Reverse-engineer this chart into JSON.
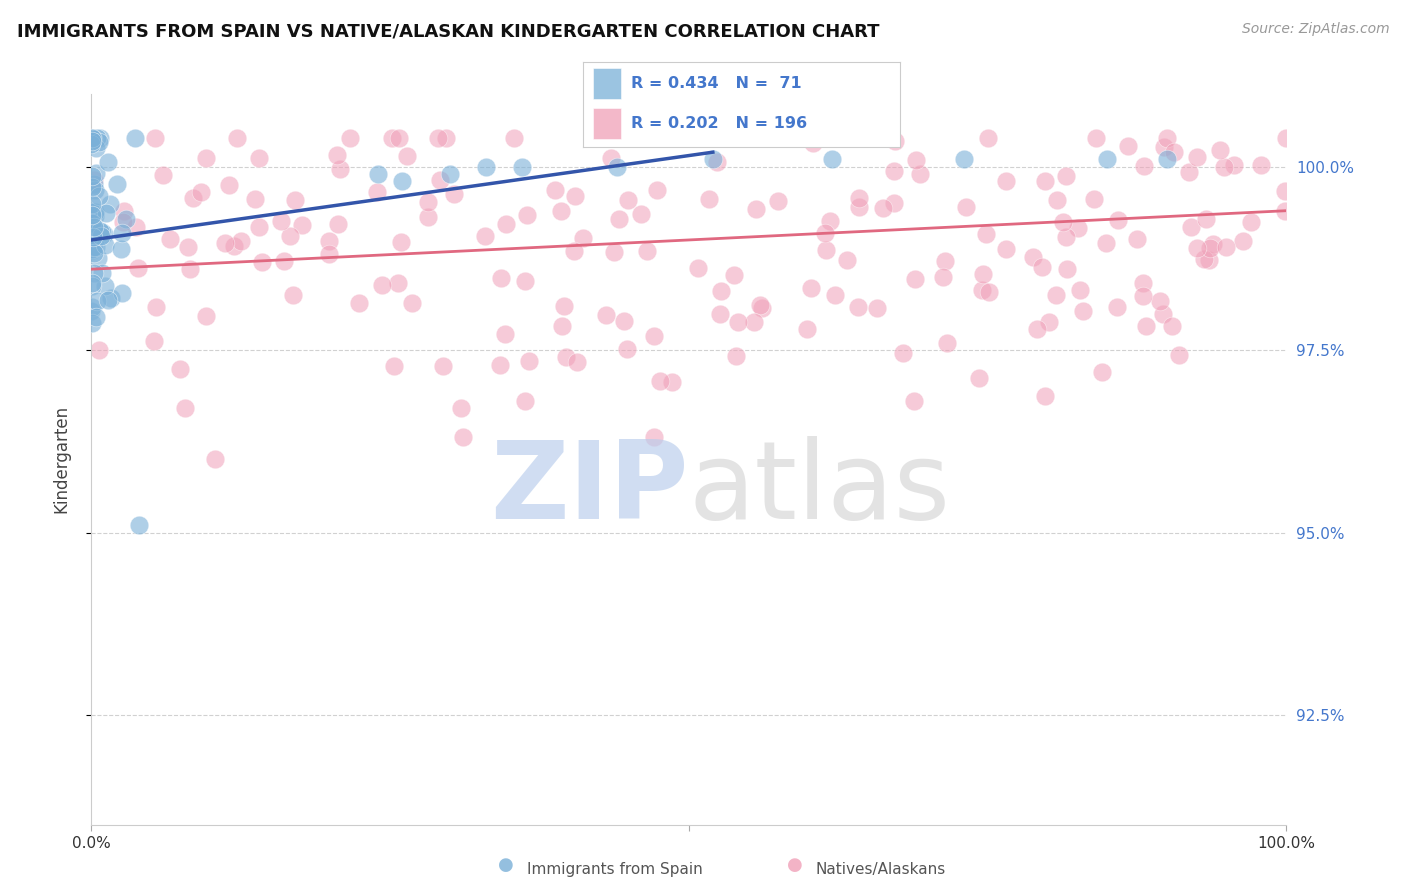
{
  "title": "IMMIGRANTS FROM SPAIN VS NATIVE/ALASKAN KINDERGARTEN CORRELATION CHART",
  "source": "Source: ZipAtlas.com",
  "ylabel": "Kindergarten",
  "right_ytick_labels": [
    "92.5%",
    "95.0%",
    "97.5%",
    "100.0%"
  ],
  "right_ytick_values": [
    0.925,
    0.95,
    0.975,
    1.0
  ],
  "legend_text_color": "#4477cc",
  "watermark_color_zip": "#c8d8f0",
  "watermark_color_atlas": "#e0e0e0",
  "blue_color": "#7ab0d8",
  "pink_color": "#f0a0b8",
  "blue_line_color": "#3355aa",
  "pink_line_color": "#e06880",
  "blue_R": 0.434,
  "pink_R": 0.202,
  "blue_N": 71,
  "pink_N": 196,
  "x_min": 0.0,
  "x_max": 1.0,
  "y_min": 0.91,
  "y_max": 1.01,
  "grid_color": "#cccccc",
  "background_color": "#ffffff",
  "title_fontsize": 13,
  "source_fontsize": 10,
  "blue_line_x": [
    0.0,
    0.52
  ],
  "blue_line_y": [
    0.99,
    1.002
  ],
  "pink_line_x": [
    0.0,
    1.0
  ],
  "pink_line_y": [
    0.986,
    0.994
  ]
}
